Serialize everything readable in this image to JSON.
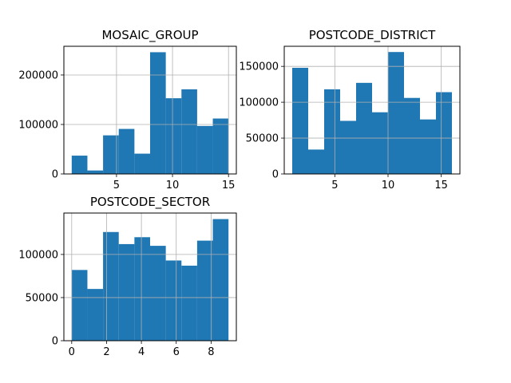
{
  "chart_data": [
    {
      "type": "bar",
      "title": "MOSAIC_GROUP",
      "bin_edges": [
        1,
        2.4,
        3.8,
        5.2,
        6.6,
        8,
        9.4,
        10.8,
        12.2,
        13.6,
        15
      ],
      "values": [
        37000,
        7000,
        78000,
        91000,
        41000,
        246000,
        153000,
        171000,
        97000,
        112000
      ],
      "xlim": [
        0.3,
        15.7
      ],
      "ylim": [
        0,
        258000
      ],
      "x_ticks": [
        5,
        10,
        15
      ],
      "y_ticks": [
        0,
        100000,
        200000
      ],
      "grid": true,
      "color": "#1f77b4"
    },
    {
      "type": "bar",
      "title": "POSTCODE_DISTRICT",
      "bin_edges": [
        1,
        2.5,
        4,
        5.5,
        7,
        8.5,
        10,
        11.5,
        13,
        14.5,
        16
      ],
      "values": [
        148000,
        34000,
        118000,
        74000,
        127000,
        86000,
        170000,
        106000,
        76000,
        114000
      ],
      "xlim": [
        0.25,
        16.75
      ],
      "ylim": [
        0,
        178000
      ],
      "x_ticks": [
        5,
        10,
        15
      ],
      "y_ticks": [
        0,
        50000,
        100000,
        150000
      ],
      "grid": true,
      "color": "#1f77b4"
    },
    {
      "type": "bar",
      "title": "POSTCODE_SECTOR",
      "bin_edges": [
        0,
        0.9,
        1.8,
        2.7,
        3.6,
        4.5,
        5.4,
        6.3,
        7.2,
        8.1,
        9
      ],
      "values": [
        82000,
        60000,
        126000,
        112000,
        120000,
        110000,
        93000,
        87000,
        116000,
        141000
      ],
      "xlim": [
        -0.45,
        9.45
      ],
      "ylim": [
        0,
        148000
      ],
      "x_ticks": [
        0,
        2,
        4,
        6,
        8
      ],
      "y_ticks": [
        0,
        50000,
        100000
      ],
      "grid": true,
      "color": "#1f77b4"
    }
  ]
}
